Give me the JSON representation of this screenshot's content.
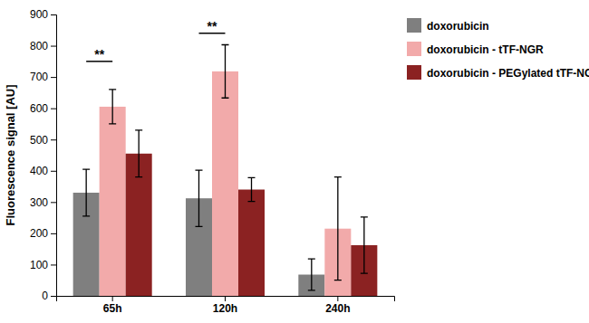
{
  "chart_data": {
    "type": "bar",
    "categories": [
      "65h",
      "120h",
      "240h"
    ],
    "series": [
      {
        "name": "doxorubicin",
        "color": "#7f7f7f",
        "values": [
          330,
          312,
          68
        ],
        "errors": [
          75,
          90,
          50
        ]
      },
      {
        "name": "doxorubicin - tTF-NGR",
        "color": "#F2AAAA",
        "values": [
          605,
          718,
          215
        ],
        "errors": [
          55,
          85,
          165
        ]
      },
      {
        "name": "doxorubicin - PEGylated tTF-NGR",
        "color": "#8B2222",
        "values": [
          455,
          340,
          162
        ],
        "errors": [
          75,
          38,
          90
        ]
      }
    ],
    "y_label": "Fluorescence signal [AU]",
    "ylim": [
      0,
      900
    ],
    "yticks": [
      0,
      100,
      200,
      300,
      400,
      500,
      600,
      700,
      800,
      900
    ],
    "grid": false,
    "legend": "right",
    "annotations": [
      {
        "text": "**",
        "category": "65h",
        "between": [
          "doxorubicin",
          "doxorubicin - tTF-NGR"
        ],
        "y": 750
      },
      {
        "text": "**",
        "category": "120h",
        "between": [
          "doxorubicin",
          "doxorubicin - tTF-NGR"
        ],
        "y": 840
      }
    ]
  }
}
